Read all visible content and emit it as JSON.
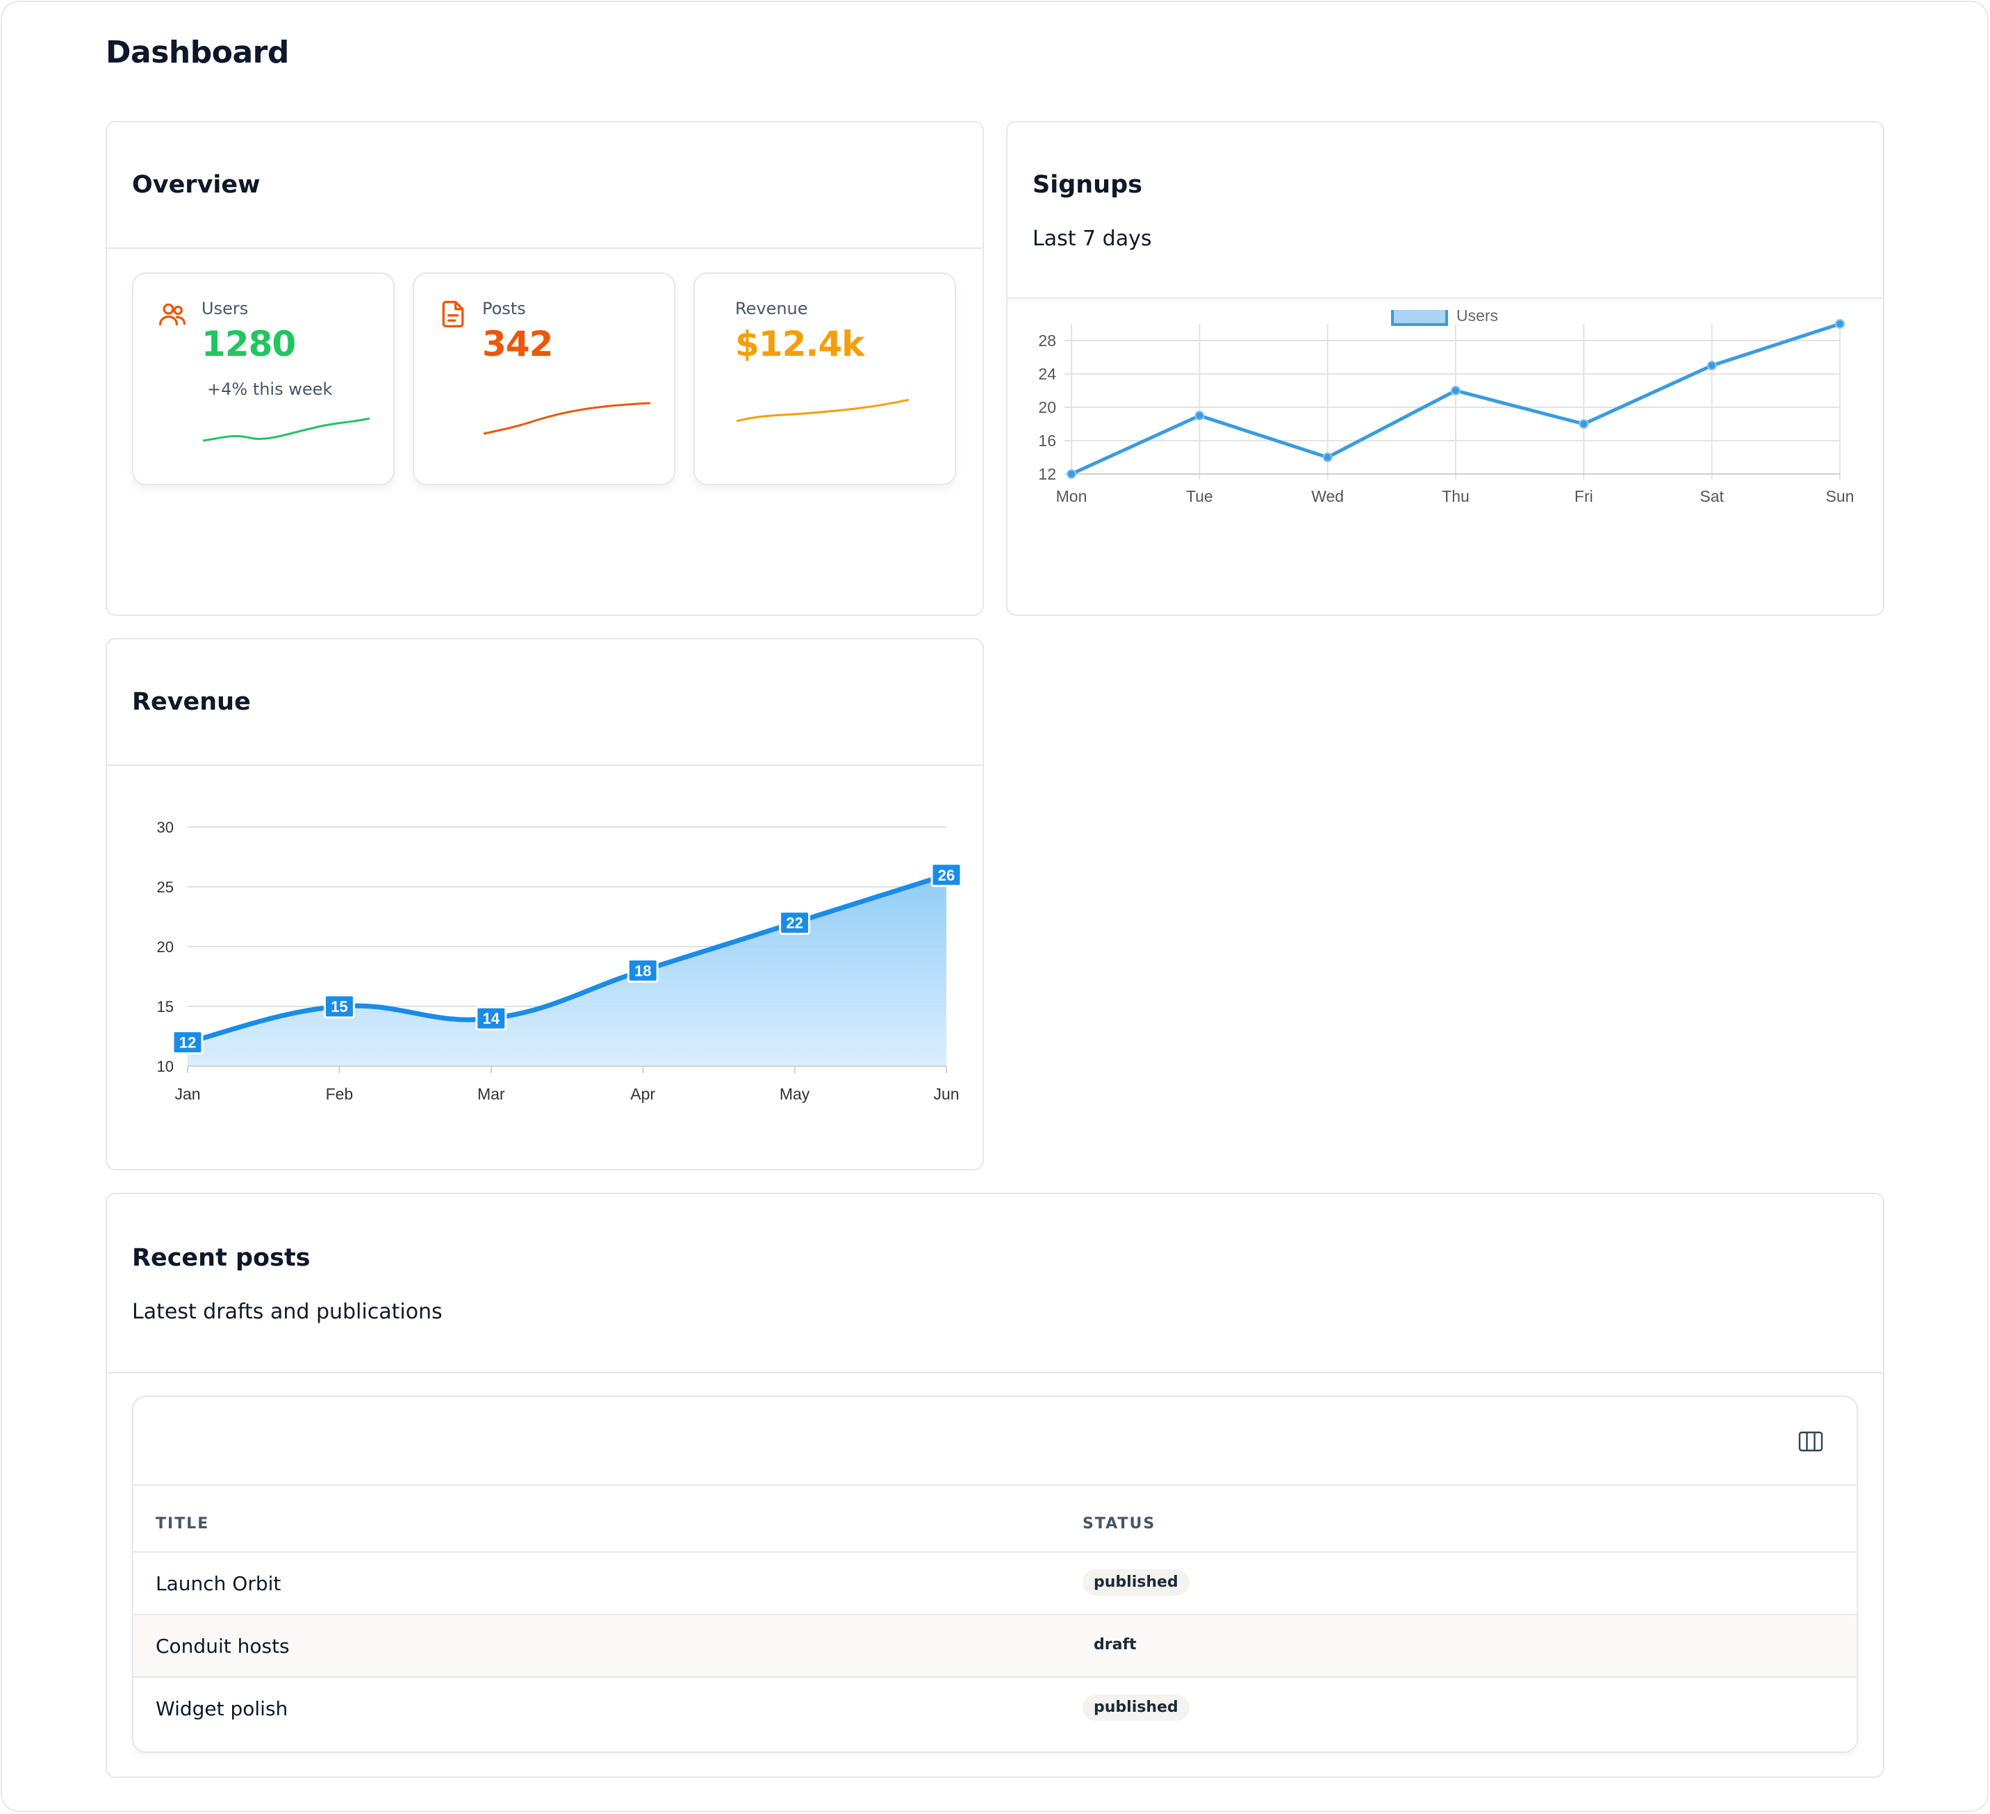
{
  "page": {
    "title": "Dashboard"
  },
  "overview": {
    "title": "Overview",
    "stats": [
      {
        "label": "Users",
        "value": "1280",
        "delta": "+4% this week",
        "color": "#22c55e",
        "icon": "users-icon",
        "icon_color": "#ea580c"
      },
      {
        "label": "Posts",
        "value": "342",
        "color": "#ea580c",
        "icon": "document-icon",
        "icon_color": "#ea580c"
      },
      {
        "label": "Revenue",
        "value": "$12.4k",
        "color": "#f59e0b"
      }
    ]
  },
  "signups": {
    "title": "Signups",
    "subtitle": "Last 7 days"
  },
  "revenue": {
    "title": "Revenue"
  },
  "chart_data": [
    {
      "type": "line",
      "categories": [
        "Mon",
        "Tue",
        "Wed",
        "Thu",
        "Fri",
        "Sat",
        "Sun"
      ],
      "series": [
        {
          "name": "Users",
          "values": [
            12,
            19,
            14,
            22,
            18,
            25,
            30
          ],
          "color": "#3b9be0"
        }
      ],
      "yticks": [
        12,
        16,
        20,
        24,
        28
      ],
      "ylim": [
        12,
        30
      ],
      "grid": true,
      "legend": "top"
    },
    {
      "type": "area",
      "categories": [
        "Jan",
        "Feb",
        "Mar",
        "Apr",
        "May",
        "Jun"
      ],
      "series": [
        {
          "values": [
            12,
            15,
            14,
            18,
            22,
            26
          ],
          "color": "#1a8ce6"
        }
      ],
      "yticks": [
        10,
        15,
        20,
        25,
        30
      ],
      "ylim": [
        10,
        30
      ],
      "data_labels": true,
      "grid": true
    }
  ],
  "recent_posts": {
    "title": "Recent posts",
    "subtitle": "Latest drafts and publications",
    "columns_button_icon": "columns-icon",
    "headers": {
      "title": "Title",
      "status": "Status"
    },
    "rows": [
      {
        "title": "Launch Orbit",
        "status": "published"
      },
      {
        "title": "Conduit hosts",
        "status": "draft"
      },
      {
        "title": "Widget polish",
        "status": "published"
      }
    ]
  }
}
